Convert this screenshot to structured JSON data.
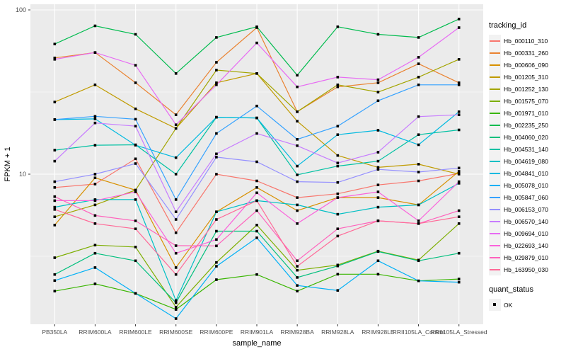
{
  "figure": {
    "panel_bg": "#EBEBEB",
    "grid_color": "#FFFFFF",
    "tick_label_color": "#4D4D4D",
    "axis_title_color": "#000000",
    "point_color": "#000000"
  },
  "axes": {
    "x_title": "sample_name",
    "y_title": "FPKM + 1",
    "y_tick_labels": [
      "100",
      "10"
    ]
  },
  "legend": {
    "tracking_title": "tracking_id",
    "quant_title": "quant_status",
    "quant_items": [
      "OK"
    ]
  },
  "chart_data": {
    "type": "line",
    "title": "",
    "xlabel": "sample_name",
    "ylabel": "FPKM + 1",
    "y_scale": "log10",
    "ylim": [
      1.2,
      110
    ],
    "y_major_ticks": [
      10,
      100
    ],
    "y_minor_ticks": [
      3.1623,
      31.623
    ],
    "grid": true,
    "legend_position": "right",
    "legend_title": "tracking_id",
    "point_shape": "filled-square",
    "quant_status": "OK",
    "x_categories": [
      "PB350LA",
      "RRIM600LA",
      "RRIM600LE",
      "RRIM600SE",
      "RRIM600PE",
      "RRIM901LA",
      "RRIM928BA",
      "RRIM928LA",
      "RRIM928LE",
      "RRII105LA_Control",
      "RRII105LA_Stressed"
    ],
    "series": [
      {
        "name": "Hb_000110_310",
        "color": "#F8766D",
        "values": [
          8.3,
          8.7,
          12.4,
          4.4,
          10.0,
          9.1,
          7.2,
          7.6,
          8.6,
          9.1,
          10.1
        ]
      },
      {
        "name": "Hb_000331_260",
        "color": "#EA8331",
        "values": [
          51,
          55,
          36,
          23,
          48,
          78,
          24,
          34,
          36,
          47,
          36
        ]
      },
      {
        "name": "Hb_000606_090",
        "color": "#D89000",
        "values": [
          4.9,
          9.5,
          8.0,
          2.7,
          5.9,
          8.3,
          6.0,
          7.2,
          7.2,
          6.5,
          10.4
        ]
      },
      {
        "name": "Hb_001205_310",
        "color": "#C09B00",
        "values": [
          27.5,
          35,
          25,
          19,
          36,
          41,
          21,
          13,
          11,
          11.5,
          10.0
        ]
      },
      {
        "name": "Hb_001252_130",
        "color": "#A3A500",
        "values": [
          5.5,
          6.5,
          8.0,
          19,
          43,
          41,
          24,
          35,
          31.6,
          39,
          50
        ]
      },
      {
        "name": "Hb_001575_070",
        "color": "#7CAE00",
        "values": [
          3.1,
          3.7,
          3.6,
          1.55,
          2.9,
          4.9,
          2.6,
          2.8,
          3.4,
          3.0,
          5.0
        ]
      },
      {
        "name": "Hb_001971_010",
        "color": "#39B600",
        "values": [
          1.94,
          2.15,
          1.88,
          1.5,
          2.28,
          2.45,
          1.94,
          2.46,
          2.46,
          2.24,
          2.3
        ]
      },
      {
        "name": "Hb_002235_250",
        "color": "#00BB4E",
        "values": [
          62,
          80,
          71,
          41,
          68,
          79,
          40,
          79,
          71,
          68,
          88
        ]
      },
      {
        "name": "Hb_004060_020",
        "color": "#00BF7D",
        "values": [
          2.45,
          3.3,
          2.97,
          1.65,
          4.5,
          4.5,
          2.35,
          2.76,
          3.38,
          2.97,
          3.3
        ]
      },
      {
        "name": "Hb_004531_140",
        "color": "#00C1A3",
        "values": [
          14,
          15,
          15.1,
          10,
          22.2,
          22,
          9.9,
          11.2,
          12,
          17.4,
          18.6
        ]
      },
      {
        "name": "Hb_004619_080",
        "color": "#00BFC4",
        "values": [
          6.3,
          7.0,
          7.0,
          1.7,
          5.9,
          6.9,
          6.5,
          5.7,
          6.3,
          6.5,
          8.8
        ]
      },
      {
        "name": "Hb_004841_010",
        "color": "#00BAE0",
        "values": [
          21.5,
          21.7,
          15,
          12.6,
          22.2,
          22,
          11.2,
          17.4,
          18.5,
          15.1,
          24
        ]
      },
      {
        "name": "Hb_005078_010",
        "color": "#00B0F6",
        "values": [
          2.25,
          2.7,
          1.88,
          1.32,
          2.75,
          4.1,
          2.1,
          1.96,
          2.97,
          2.24,
          2.2
        ]
      },
      {
        "name": "Hb_005847_060",
        "color": "#35A2FF",
        "values": [
          21.5,
          22.5,
          21.6,
          7.0,
          17.7,
          26,
          16.3,
          19.6,
          28,
          35,
          35
        ]
      },
      {
        "name": "Hb_006153_070",
        "color": "#9590FF",
        "values": [
          9.0,
          10.0,
          11.6,
          5.3,
          12.7,
          11.9,
          9.0,
          8.9,
          10.7,
          10.3,
          10.9
        ]
      },
      {
        "name": "Hb_006570_140",
        "color": "#C77CFF",
        "values": [
          12,
          20.5,
          19.6,
          5.9,
          13.3,
          17.7,
          14.9,
          11.7,
          13.6,
          22.4,
          23
        ]
      },
      {
        "name": "Hb_009694_010",
        "color": "#E76BF3",
        "values": [
          50,
          55,
          46,
          20,
          35,
          63,
          34,
          39,
          37.6,
          51.5,
          78
        ]
      },
      {
        "name": "Hb_022693_140",
        "color": "#FA62DB",
        "values": [
          6.9,
          6.9,
          7.8,
          3.3,
          4.0,
          7.7,
          5.0,
          7.2,
          7.8,
          5.2,
          9.0
        ]
      },
      {
        "name": "Hb_029879_010",
        "color": "#FF62BC",
        "values": [
          7.3,
          5.6,
          5.2,
          3.67,
          3.66,
          6.0,
          2.97,
          4.65,
          5.2,
          5.0,
          6.0
        ]
      },
      {
        "name": "Hb_163950_030",
        "color": "#FF6A98",
        "values": [
          6.1,
          5.0,
          4.65,
          2.45,
          5.3,
          6.9,
          2.75,
          4.2,
          5.2,
          5.0,
          5.5
        ]
      }
    ]
  }
}
